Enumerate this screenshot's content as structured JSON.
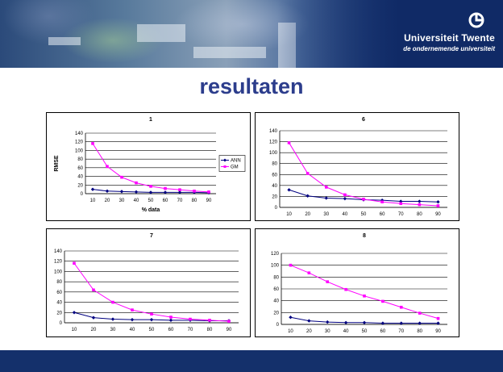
{
  "header": {
    "brand_name": "Universiteit Twente",
    "brand_tagline": "de ondernemende universiteit",
    "brand_color": "#14306b",
    "logo_icon": "university-logo-icon"
  },
  "slide": {
    "title": "resultaten",
    "title_color": "#2c3d8c"
  },
  "series_colors": {
    "ANN": "#000080",
    "GM": "#ff00ff"
  },
  "chart_data": [
    {
      "type": "line",
      "title": "1",
      "xlabel": "% data",
      "ylabel": "RMSE",
      "x": [
        10,
        20,
        30,
        40,
        50,
        60,
        70,
        80,
        90
      ],
      "ylim": [
        0,
        140
      ],
      "yticks": [
        0,
        20,
        40,
        60,
        80,
        100,
        120,
        140
      ],
      "grid": true,
      "legend": "right",
      "series": [
        {
          "name": "ANN",
          "values": [
            10,
            6,
            5,
            4,
            3,
            3,
            3,
            3,
            2
          ]
        },
        {
          "name": "GM",
          "values": [
            116,
            63,
            38,
            25,
            17,
            12,
            9,
            6,
            4
          ]
        }
      ]
    },
    {
      "type": "line",
      "title": "6",
      "xlabel": "",
      "ylabel": "",
      "x": [
        10,
        20,
        30,
        40,
        50,
        60,
        70,
        80,
        90
      ],
      "ylim": [
        0,
        140
      ],
      "yticks": [
        0,
        20,
        40,
        60,
        80,
        100,
        120,
        140
      ],
      "grid": true,
      "legend": "none",
      "series": [
        {
          "values": [
            32,
            21,
            17,
            16,
            14,
            13,
            11,
            11,
            10
          ]
        },
        {
          "values": [
            118,
            62,
            37,
            23,
            15,
            10,
            7,
            5,
            3
          ]
        }
      ]
    },
    {
      "type": "line",
      "title": "7",
      "xlabel": "",
      "ylabel": "",
      "x": [
        10,
        20,
        30,
        40,
        50,
        60,
        70,
        80,
        90
      ],
      "ylim": [
        0,
        140
      ],
      "yticks": [
        0,
        20,
        40,
        60,
        80,
        100,
        120,
        140
      ],
      "grid": true,
      "legend": "none",
      "series": [
        {
          "values": [
            20,
            10,
            7,
            6,
            6,
            5,
            5,
            4,
            4
          ]
        },
        {
          "values": [
            116,
            64,
            40,
            25,
            17,
            11,
            7,
            5,
            3
          ]
        }
      ]
    },
    {
      "type": "line",
      "title": "8",
      "xlabel": "",
      "ylabel": "",
      "x": [
        10,
        20,
        30,
        40,
        50,
        60,
        70,
        80,
        90
      ],
      "ylim": [
        0,
        120
      ],
      "yticks": [
        0,
        20,
        40,
        60,
        80,
        100,
        120
      ],
      "grid": true,
      "legend": "none",
      "series": [
        {
          "values": [
            12,
            6,
            4,
            3,
            3,
            2,
            2,
            2,
            2
          ]
        },
        {
          "values": [
            100,
            87,
            72,
            59,
            48,
            39,
            29,
            19,
            10
          ]
        }
      ]
    }
  ]
}
